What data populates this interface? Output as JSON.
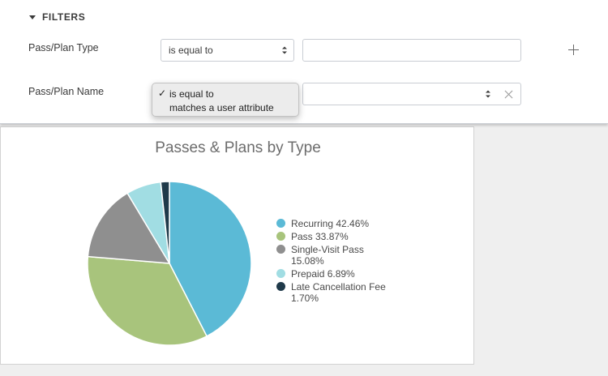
{
  "filters": {
    "header": "FILTERS",
    "rows": [
      {
        "label": "Pass/Plan Type",
        "operator": "is equal to",
        "value": ""
      },
      {
        "label": "Pass/Plan Name",
        "value": ""
      }
    ],
    "dropdown_options": [
      {
        "label": "is equal to",
        "checked": true
      },
      {
        "label": "matches a user attribute",
        "checked": false
      }
    ],
    "add_icon": "plus-icon",
    "clear_icon": "close-icon"
  },
  "colors": {
    "recurring": "#5bbad6",
    "pass": "#a8c47c",
    "single_visit": "#8f8f8f",
    "prepaid": "#a1dde3",
    "late_fee": "#1f3a4a",
    "select_highlight": "#4fb7cf"
  },
  "chart_data": {
    "type": "pie",
    "title": "Passes & Plans by Type",
    "legend_position": "right",
    "slices": [
      {
        "name": "Recurring",
        "value": 42.46,
        "label": "Recurring 42.46%",
        "color": "#5bbad6"
      },
      {
        "name": "Pass",
        "value": 33.87,
        "label": "Pass 33.87%",
        "color": "#a8c47c"
      },
      {
        "name": "Single-Visit Pass",
        "value": 15.08,
        "label": "Single-Visit Pass 15.08%",
        "color": "#8f8f8f"
      },
      {
        "name": "Prepaid",
        "value": 6.89,
        "label": "Prepaid 6.89%",
        "color": "#a1dde3"
      },
      {
        "name": "Late Cancellation Fee",
        "value": 1.7,
        "label": "Late Cancellation Fee 1.70%",
        "color": "#1f3a4a"
      }
    ]
  }
}
